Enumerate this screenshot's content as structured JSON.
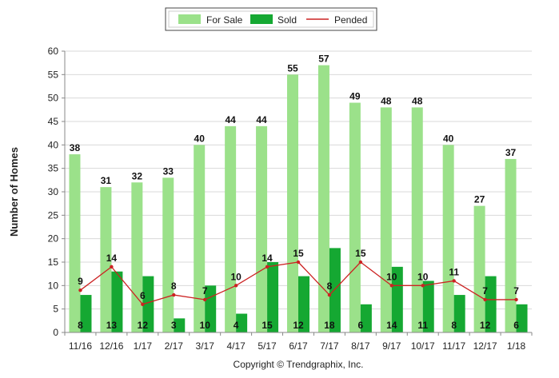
{
  "chart_data": {
    "type": "bar",
    "ylabel": "Number of Homes",
    "ylim": [
      0,
      60
    ],
    "yticks": [
      0,
      5,
      10,
      15,
      20,
      25,
      30,
      35,
      40,
      45,
      50,
      55,
      60
    ],
    "grid": "horizontal",
    "legend_position": "top",
    "categories": [
      "11/16",
      "12/16",
      "1/17",
      "2/17",
      "3/17",
      "4/17",
      "5/17",
      "6/17",
      "7/17",
      "8/17",
      "9/17",
      "10/17",
      "11/17",
      "12/17",
      "1/18"
    ],
    "series": [
      {
        "name": "For Sale",
        "kind": "bar",
        "color": "#9be18a",
        "values": [
          38,
          31,
          32,
          33,
          40,
          44,
          44,
          55,
          57,
          49,
          48,
          48,
          40,
          27,
          37
        ]
      },
      {
        "name": "Sold",
        "kind": "bar",
        "color": "#15a832",
        "values": [
          8,
          13,
          12,
          3,
          10,
          4,
          15,
          12,
          18,
          6,
          14,
          11,
          8,
          12,
          6
        ]
      },
      {
        "name": "Pended",
        "kind": "line",
        "color": "#cc2222",
        "values": [
          9,
          14,
          6,
          8,
          7,
          10,
          14,
          15,
          8,
          15,
          10,
          10,
          11,
          7,
          7
        ]
      }
    ]
  },
  "footer": {
    "copyright": "Copyright © Trendgraphix, Inc."
  }
}
